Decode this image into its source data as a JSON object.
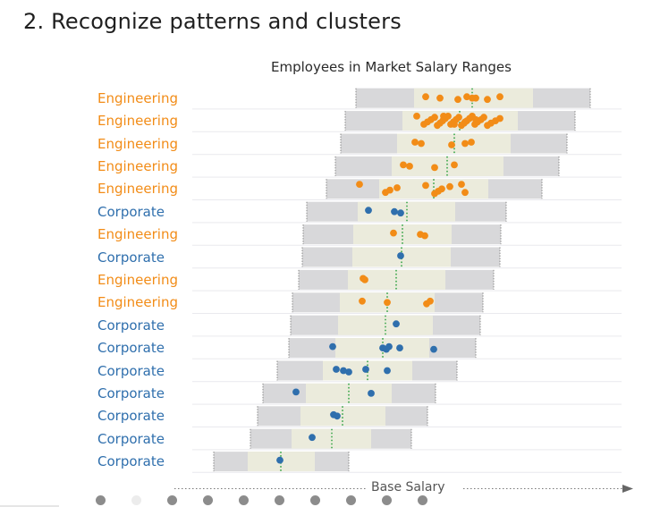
{
  "heading": "2.  Recognize patterns and clusters",
  "chart_data": {
    "type": "scatter",
    "title": "Employees in Market Salary Ranges",
    "xlabel": "Base Salary",
    "ylabel": "",
    "colors": {
      "Engineering": "#f28c17",
      "Corporate": "#2f6fad",
      "outer_range": "#d8d8da",
      "inner_range": "#ebebdc",
      "midpoint": "#3aa64a"
    },
    "rows": [
      {
        "label": "Engineering",
        "group": "Engineering",
        "range_min": 398,
        "range_q1": 463,
        "range_q3": 596,
        "range_max": 660,
        "midpoint": 528,
        "points": [
          476,
          492,
          512,
          522,
          532,
          545,
          559,
          528
        ]
      },
      {
        "label": "Engineering",
        "group": "Engineering",
        "range_min": 386,
        "range_q1": 450,
        "range_q3": 579,
        "range_max": 643,
        "midpoint": 514,
        "points": [
          466,
          474,
          478,
          482,
          486,
          489,
          492,
          495,
          498,
          501,
          504,
          507,
          510,
          513,
          516,
          519,
          522,
          525,
          528,
          531,
          534,
          538,
          541,
          545,
          549,
          554,
          559,
          496,
          508,
          520,
          532
        ]
      },
      {
        "label": "Engineering",
        "group": "Engineering",
        "range_min": 381,
        "range_q1": 444,
        "range_q3": 571,
        "range_max": 634,
        "midpoint": 508,
        "points": [
          464,
          471,
          505,
          527,
          520
        ]
      },
      {
        "label": "Engineering",
        "group": "Engineering",
        "range_min": 375,
        "range_q1": 438,
        "range_q3": 563,
        "range_max": 625,
        "midpoint": 500,
        "points": [
          451,
          458,
          486,
          508
        ]
      },
      {
        "label": "Engineering",
        "group": "Engineering",
        "range_min": 365,
        "range_q1": 424,
        "range_q3": 546,
        "range_max": 606,
        "midpoint": 485,
        "points": [
          402,
          431,
          436,
          444,
          476,
          486,
          490,
          494,
          503,
          516,
          520
        ]
      },
      {
        "label": "Corporate",
        "group": "Corporate",
        "range_min": 343,
        "range_q1": 400,
        "range_q3": 509,
        "range_max": 566,
        "midpoint": 455,
        "points": [
          412,
          441,
          448
        ]
      },
      {
        "label": "Engineering",
        "group": "Engineering",
        "range_min": 339,
        "range_q1": 395,
        "range_q3": 505,
        "range_max": 560,
        "midpoint": 450,
        "points": [
          440,
          470,
          475
        ]
      },
      {
        "label": "Corporate",
        "group": "Corporate",
        "range_min": 338,
        "range_q1": 394,
        "range_q3": 504,
        "range_max": 559,
        "midpoint": 449,
        "points": [
          448
        ]
      },
      {
        "label": "Engineering",
        "group": "Engineering",
        "range_min": 334,
        "range_q1": 389,
        "range_q3": 498,
        "range_max": 552,
        "midpoint": 443,
        "points": [
          406,
          408
        ]
      },
      {
        "label": "Engineering",
        "group": "Engineering",
        "range_min": 327,
        "range_q1": 380,
        "range_q3": 486,
        "range_max": 540,
        "midpoint": 433,
        "points": [
          405,
          433,
          477,
          481
        ]
      },
      {
        "label": "Corporate",
        "group": "Corporate",
        "range_min": 325,
        "range_q1": 378,
        "range_q3": 484,
        "range_max": 537,
        "midpoint": 431,
        "points": [
          443
        ]
      },
      {
        "label": "Corporate",
        "group": "Corporate",
        "range_min": 323,
        "range_q1": 375,
        "range_q3": 480,
        "range_max": 532,
        "midpoint": 428,
        "points": [
          372,
          428,
          432,
          435,
          447,
          485
        ]
      },
      {
        "label": "Corporate",
        "group": "Corporate",
        "range_min": 310,
        "range_q1": 361,
        "range_q3": 461,
        "range_max": 511,
        "midpoint": 411,
        "points": [
          376,
          384,
          390,
          409,
          433
        ]
      },
      {
        "label": "Corporate",
        "group": "Corporate",
        "range_min": 294,
        "range_q1": 342,
        "range_q3": 438,
        "range_max": 487,
        "midpoint": 390,
        "points": [
          331,
          415
        ]
      },
      {
        "label": "Corporate",
        "group": "Corporate",
        "range_min": 288,
        "range_q1": 336,
        "range_q3": 431,
        "range_max": 478,
        "midpoint": 383,
        "points": [
          373,
          377
        ]
      },
      {
        "label": "Corporate",
        "group": "Corporate",
        "range_min": 280,
        "range_q1": 326,
        "range_q3": 415,
        "range_max": 460,
        "midpoint": 371,
        "points": [
          349
        ]
      },
      {
        "label": "Corporate",
        "group": "Corporate",
        "range_min": 239,
        "range_q1": 277,
        "range_q3": 352,
        "range_max": 390,
        "midpoint": 314,
        "points": [
          313
        ]
      }
    ],
    "grid": true,
    "legend": "none"
  },
  "nav": {
    "slide_count": 10,
    "active_index": 1
  }
}
